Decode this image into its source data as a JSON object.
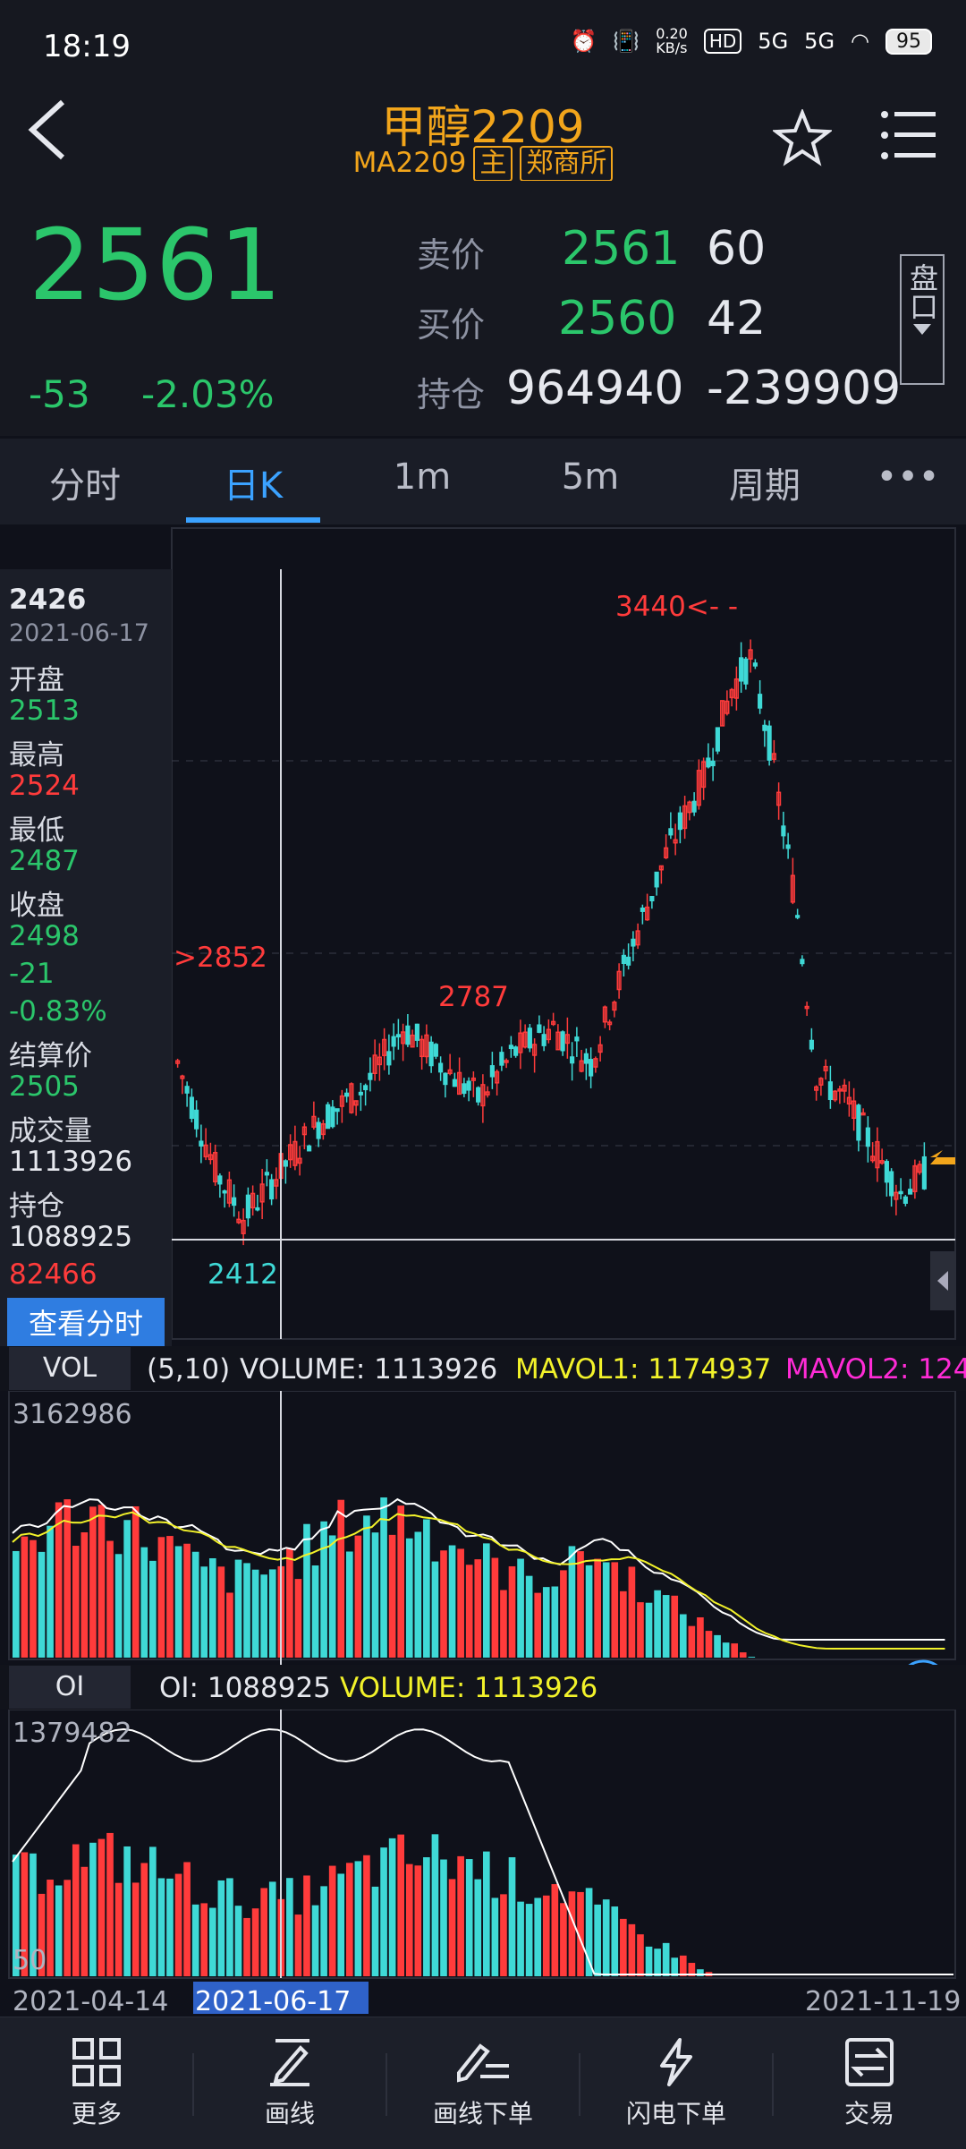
{
  "status": {
    "time": "18:19",
    "netspeed": "0.20\nKB/s",
    "hd": "HD",
    "sig1": "5G",
    "sig2": "5G",
    "battery": "95"
  },
  "header": {
    "title": "甲醇2209",
    "code": "MA2209",
    "badge_main": "主",
    "badge_exchange": "郑商所"
  },
  "quote": {
    "last": "2561",
    "change": "-53",
    "change_pct": "-2.03%",
    "ask_label": "卖价",
    "ask_price": "2561",
    "ask_vol": "60",
    "bid_label": "买价",
    "bid_price": "2560",
    "bid_vol": "42",
    "oi_label": "持仓",
    "oi_value": "964940",
    "oi_change": "-239909",
    "pankou": "盘口"
  },
  "tabs": [
    "分时",
    "日K",
    "1m",
    "5m",
    "周期",
    "•••"
  ],
  "info_panel": {
    "price": "2426",
    "date": "2021-06-17",
    "open_label": "开盘",
    "open": "2513",
    "high_label": "最高",
    "high": "2524",
    "low_label": "最低",
    "low": "2487",
    "close_label": "收盘",
    "close": "2498",
    "chg": "-21",
    "chg_pct": "-0.83%",
    "settle_label": "结算价",
    "settle": "2505",
    "vol_label": "成交量",
    "vol": "1113926",
    "oi_label": "持仓",
    "oi": "1088925",
    "oi_chg": "82466",
    "view_button": "查看分时"
  },
  "kline": {
    "label_max": "3440<- -",
    "label_2852": ">2852",
    "label_2787": "2787",
    "label_min": "2412"
  },
  "volume": {
    "tag": "VOL",
    "params": "(5,10)",
    "volume": "VOLUME: 1113926",
    "mavol1": "MAVOL1: 1174937",
    "mavol2": "MAVOL2: 124",
    "axis_max": "3162986"
  },
  "oi_panel": {
    "tag": "OI",
    "oi": "OI: 1088925",
    "volume": "VOLUME: 1113926",
    "axis_max": "1379482",
    "axis_min": "50"
  },
  "xaxis": {
    "start": "2021-04-14",
    "cursor": "2021-06-17",
    "end": "2021-11-19"
  },
  "bottom_nav": [
    "更多",
    "画线",
    "画线下单",
    "闪电下单",
    "交易"
  ],
  "colors": {
    "up": "#ff3b3b",
    "down": "#3fd9d6",
    "accent": "#3ba2ff",
    "title": "#f2a51b"
  }
}
